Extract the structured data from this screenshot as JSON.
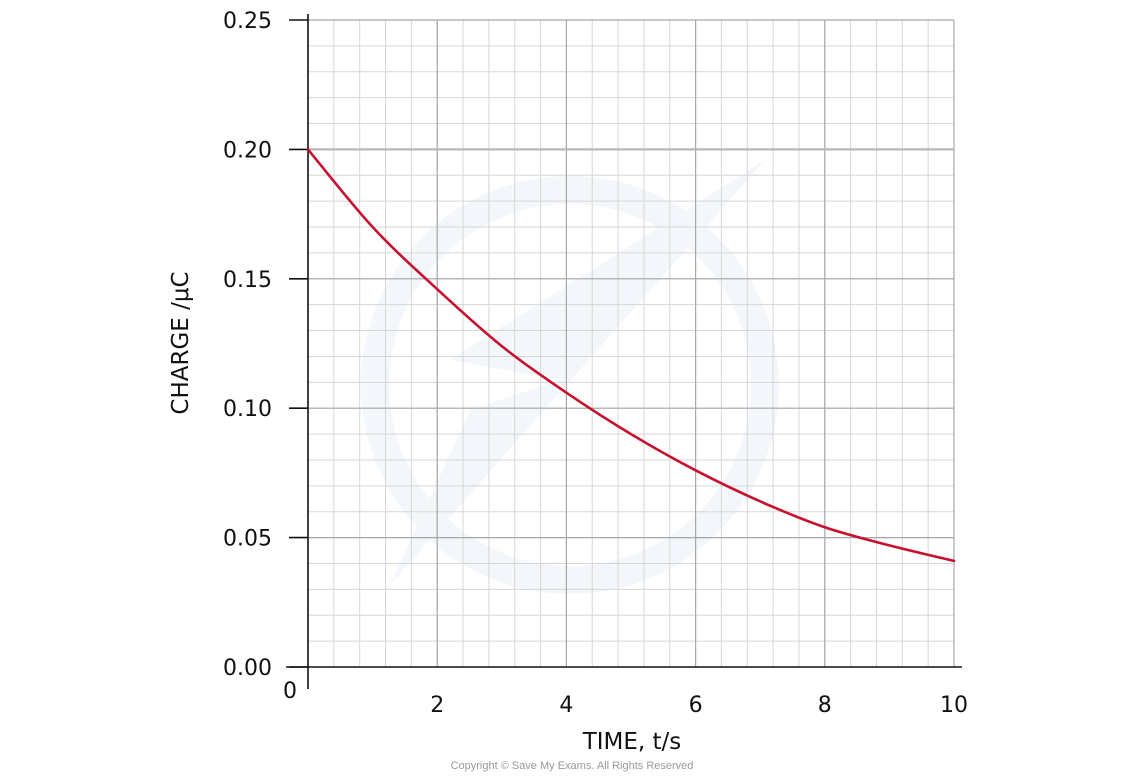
{
  "chart_data": {
    "type": "line",
    "title": "",
    "xlabel": "TIME, t/s",
    "ylabel": "CHARGE /μC",
    "xlim": [
      0,
      10
    ],
    "ylim": [
      0,
      0.25
    ],
    "x_ticks": [
      0,
      2,
      4,
      6,
      8,
      10
    ],
    "x_tick_labels": [
      "0",
      "2",
      "4",
      "6",
      "8",
      "10"
    ],
    "y_ticks": [
      0,
      0.05,
      0.1,
      0.15,
      0.2,
      0.25
    ],
    "y_tick_labels": [
      "0.00",
      "0.05",
      "0.10",
      "0.15",
      "0.20",
      "0.25"
    ],
    "grid": true,
    "highlight_gridline_y": 0.2,
    "series": [
      {
        "color": "#c8102e",
        "x": [
          0,
          1,
          2,
          3,
          4,
          5,
          6,
          7,
          8,
          9,
          10
        ],
        "y": [
          0.2,
          0.17,
          0.146,
          0.124,
          0.106,
          0.09,
          0.076,
          0.064,
          0.054,
          0.047,
          0.041
        ]
      }
    ]
  },
  "colors": {
    "curve": "#c8102e",
    "major_grid": "#a8a8a8",
    "minor_grid": "#d6d6d6",
    "axis": "#111111"
  },
  "footer": {
    "copyright": "Copyright © Save My Exams. All Rights Reserved"
  }
}
